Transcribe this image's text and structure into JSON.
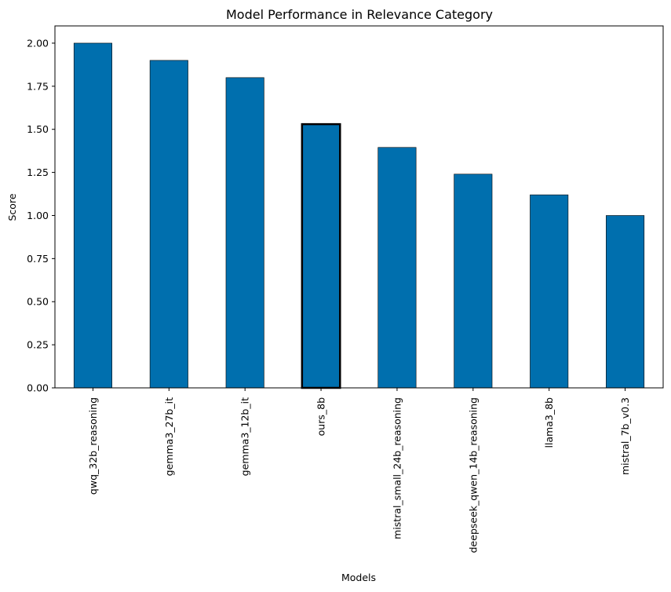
{
  "chart_data": {
    "type": "bar",
    "title": "Model Performance in Relevance Category",
    "xlabel": "Models",
    "ylabel": "Score",
    "ylim": [
      0,
      2.1
    ],
    "yticks": [
      "0.00",
      "0.25",
      "0.50",
      "0.75",
      "1.00",
      "1.25",
      "1.50",
      "1.75",
      "2.00"
    ],
    "ytick_values": [
      0,
      0.25,
      0.5,
      0.75,
      1.0,
      1.25,
      1.5,
      1.75,
      2.0
    ],
    "categories": [
      "qwq_32b_reasoning",
      "gemma3_27b_it",
      "gemma3_12b_it",
      "ours_8b",
      "mistral_small_24b_reasoning",
      "deepseek_qwen_14b_reasoning",
      "llama3_8b",
      "mistral_7b_v0.3"
    ],
    "values": [
      2.0,
      1.9,
      1.8,
      1.53,
      1.395,
      1.24,
      1.12,
      1.0
    ],
    "highlight": "ours_8b",
    "bar_color": "#006fae",
    "edge_color": "#000000",
    "grid": false,
    "legend": false
  }
}
